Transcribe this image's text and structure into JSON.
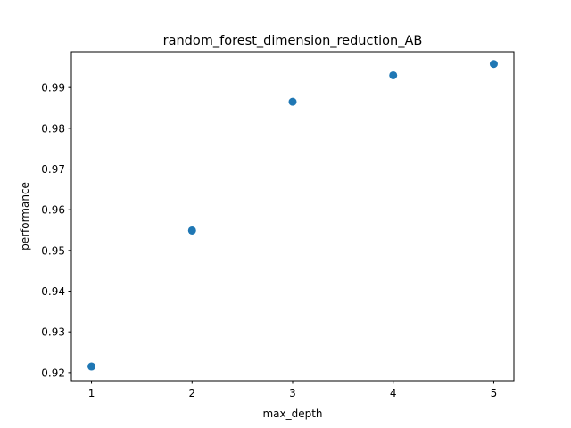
{
  "chart_data": {
    "type": "scatter",
    "title": "random_forest_dimension_reduction_AB",
    "xlabel": "max_depth",
    "ylabel": "performance",
    "x": [
      1,
      2,
      3,
      4,
      5
    ],
    "y": [
      0.9215,
      0.9549,
      0.9865,
      0.993,
      0.9958
    ],
    "xlim": [
      0.8,
      5.2
    ],
    "ylim": [
      0.918,
      0.9988
    ],
    "xticks": [
      "1",
      "2",
      "3",
      "4",
      "5"
    ],
    "yticks": [
      "0.92",
      "0.93",
      "0.94",
      "0.95",
      "0.96",
      "0.97",
      "0.98",
      "0.99"
    ],
    "marker_color": "#1f77b4",
    "grid": false,
    "legend": "none"
  }
}
